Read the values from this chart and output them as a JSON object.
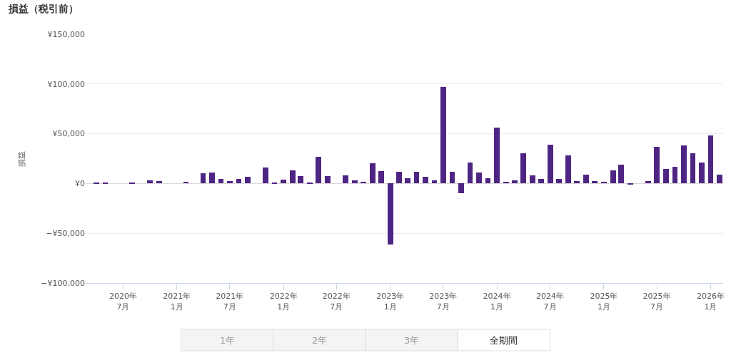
{
  "chart_data": {
    "type": "bar",
    "title": "損益（税引前）",
    "ylabel": "損益",
    "color": "#4f2583",
    "x": [
      "2020-04",
      "2020-05",
      "2020-06",
      "2020-07",
      "2020-08",
      "2020-09",
      "2020-10",
      "2020-11",
      "2020-12",
      "2021-01",
      "2021-02",
      "2021-03",
      "2021-04",
      "2021-05",
      "2021-06",
      "2021-07",
      "2021-08",
      "2021-09",
      "2021-10",
      "2021-11",
      "2021-12",
      "2022-01",
      "2022-02",
      "2022-03",
      "2022-04",
      "2022-05",
      "2022-06",
      "2022-07",
      "2022-08",
      "2022-09",
      "2022-10",
      "2022-11",
      "2022-12",
      "2023-01",
      "2023-02",
      "2023-03",
      "2023-04",
      "2023-05",
      "2023-06",
      "2023-07",
      "2023-08",
      "2023-09",
      "2023-10",
      "2023-11",
      "2023-12",
      "2024-01",
      "2024-02",
      "2024-03",
      "2024-04",
      "2024-05",
      "2024-06",
      "2024-07",
      "2024-08",
      "2024-09",
      "2024-10",
      "2024-11",
      "2024-12",
      "2025-01",
      "2025-02",
      "2025-03",
      "2025-04",
      "2025-05",
      "2025-06",
      "2025-07",
      "2025-08",
      "2025-09",
      "2025-10",
      "2025-11",
      "2025-12",
      "2026-01",
      "2026-02"
    ],
    "values": [
      1000,
      1000,
      0,
      0,
      1000,
      0,
      3000,
      2500,
      0,
      0,
      1500,
      0,
      10000,
      11000,
      4500,
      2500,
      4500,
      6500,
      0,
      16000,
      1000,
      4000,
      13500,
      7500,
      500,
      26500,
      7500,
      0,
      8000,
      3500,
      1500,
      20500,
      12500,
      -61000,
      11500,
      5000,
      11500,
      6500,
      3000,
      97000,
      11500,
      -10000,
      21000,
      11000,
      5000,
      56500,
      1500,
      3000,
      30500,
      8000,
      4500,
      39000,
      4500,
      28500,
      2500,
      9000,
      2500,
      2000,
      13500,
      19000,
      -1000,
      0,
      2500,
      37000,
      14500,
      17000,
      38500,
      30500,
      21000,
      48500,
      9000
    ],
    "xlim": [
      "2020-02-24",
      "2026-02-13"
    ],
    "xticks": [
      {
        "value": "2020-07",
        "label": "2020年\n7月"
      },
      {
        "value": "2021-01",
        "label": "2021年\n1月"
      },
      {
        "value": "2021-07",
        "label": "2021年\n7月"
      },
      {
        "value": "2022-01",
        "label": "2022年\n1月"
      },
      {
        "value": "2022-07",
        "label": "2022年\n7月"
      },
      {
        "value": "2023-01",
        "label": "2023年\n1月"
      },
      {
        "value": "2023-07",
        "label": "2023年\n7月"
      },
      {
        "value": "2024-01",
        "label": "2024年\n1月"
      },
      {
        "value": "2024-07",
        "label": "2024年\n7月"
      },
      {
        "value": "2025-01",
        "label": "2025年\n1月"
      },
      {
        "value": "2025-07",
        "label": "2025年\n7月"
      },
      {
        "value": "2026-01",
        "label": "2026年\n1月"
      }
    ],
    "ylim": [
      -100000,
      150000
    ],
    "yticks": [
      {
        "value": -100000,
        "label": "−¥100,000"
      },
      {
        "value": -50000,
        "label": "−¥50,000"
      },
      {
        "value": 0,
        "label": "¥0"
      },
      {
        "value": 50000,
        "label": "¥50,000"
      },
      {
        "value": 100000,
        "label": "¥100,000"
      },
      {
        "value": 150000,
        "label": "¥150,000"
      }
    ],
    "grid": "y",
    "annotations": [
      "1年",
      "2年",
      "3年",
      "全期間"
    ]
  }
}
